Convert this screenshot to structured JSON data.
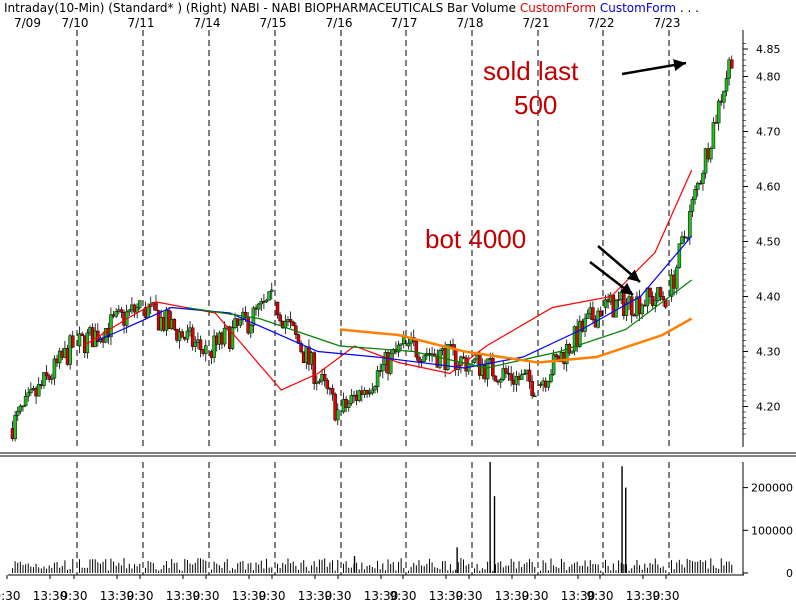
{
  "header": {
    "left_text": "Intraday(10-Min) (Standard* )  (Right)  NABI - NABI BIOPHARMACEUTICALS  Bar  Volume",
    "form1": "CustomForm",
    "form2": "CustomForm",
    "ellipsis": ". . ."
  },
  "annotations": {
    "sold_line1": "sold last",
    "sold_line2": "500",
    "bot": "bot 4000"
  },
  "colors": {
    "up": "#1fbf1f",
    "down": "#e00000",
    "ma_red": "#ff0000",
    "ma_blue": "#0000ff",
    "ma_green": "#008000",
    "ma_orange": "#ff8000",
    "annotation": "#c00000"
  },
  "chart_data": {
    "type": "candlestick",
    "title": "NABI - NABI BIOPHARMACEUTICALS",
    "date_labels": [
      "7/09",
      "7/10",
      "7/11",
      "7/14",
      "7/15",
      "7/16",
      "7/17",
      "7/18",
      "7/21",
      "7/22",
      "7/23"
    ],
    "session_labels": [
      "9:30",
      "13:30",
      "9:30",
      "13:30",
      "9:30",
      "13:30",
      "9:30",
      "13:30",
      "9:30",
      "13:30",
      "9:30",
      "13:30",
      "9:30",
      "13:30",
      "9:30",
      "13:30",
      "9:30",
      "13:30",
      "9:30",
      "13:30",
      "9:30"
    ],
    "price_ticks": [
      "4.85",
      "4.80",
      "4.70",
      "4.60",
      "4.50",
      "4.40",
      "4.30",
      "4.20"
    ],
    "price_range": [
      4.13,
      4.87
    ],
    "volume_ticks": [
      "200000",
      "100000",
      "0"
    ],
    "volume_range": [
      0,
      260000
    ],
    "day_closes": [
      [
        4.16,
        4.31
      ],
      [
        4.31,
        4.38
      ],
      [
        4.38,
        4.3
      ],
      [
        4.3,
        4.39
      ],
      [
        4.39,
        4.19
      ],
      [
        4.19,
        4.31
      ],
      [
        4.31,
        4.28
      ],
      [
        4.28,
        4.24
      ],
      [
        4.24,
        4.38
      ],
      [
        4.38,
        4.4
      ],
      [
        4.4,
        4.84
      ]
    ],
    "moving_averages": [
      {
        "color": "red",
        "points": [
          [
            4.31,
            0.1
          ],
          [
            4.36,
            0.16
          ],
          [
            4.39,
            0.2
          ],
          [
            4.37,
            0.28
          ],
          [
            4.23,
            0.37
          ],
          [
            4.26,
            0.42
          ],
          [
            4.31,
            0.47
          ],
          [
            4.28,
            0.53
          ],
          [
            4.26,
            0.6
          ],
          [
            4.31,
            0.65
          ],
          [
            4.38,
            0.74
          ],
          [
            4.4,
            0.82
          ],
          [
            4.48,
            0.88
          ],
          [
            4.63,
            0.93
          ]
        ]
      },
      {
        "color": "blue",
        "points": [
          [
            4.32,
            0.12
          ],
          [
            4.38,
            0.22
          ],
          [
            4.37,
            0.3
          ],
          [
            4.3,
            0.42
          ],
          [
            4.29,
            0.5
          ],
          [
            4.27,
            0.62
          ],
          [
            4.29,
            0.7
          ],
          [
            4.34,
            0.78
          ],
          [
            4.4,
            0.86
          ],
          [
            4.51,
            0.93
          ]
        ]
      },
      {
        "color": "green",
        "points": [
          [
            4.38,
            0.24
          ],
          [
            4.36,
            0.34
          ],
          [
            4.31,
            0.45
          ],
          [
            4.3,
            0.55
          ],
          [
            4.27,
            0.65
          ],
          [
            4.3,
            0.75
          ],
          [
            4.34,
            0.84
          ],
          [
            4.43,
            0.93
          ]
        ]
      },
      {
        "color": "orange",
        "points": [
          [
            4.34,
            0.45
          ],
          [
            4.33,
            0.53
          ],
          [
            4.3,
            0.62
          ],
          [
            4.28,
            0.72
          ],
          [
            4.29,
            0.8
          ],
          [
            4.33,
            0.89
          ],
          [
            4.36,
            0.93
          ]
        ]
      }
    ],
    "volume_spikes": [
      [
        0.655,
        260000
      ],
      [
        0.661,
        180000
      ],
      [
        0.835,
        250000
      ],
      [
        0.84,
        200000
      ],
      [
        0.61,
        60000
      ],
      [
        0.47,
        40000
      ]
    ]
  }
}
